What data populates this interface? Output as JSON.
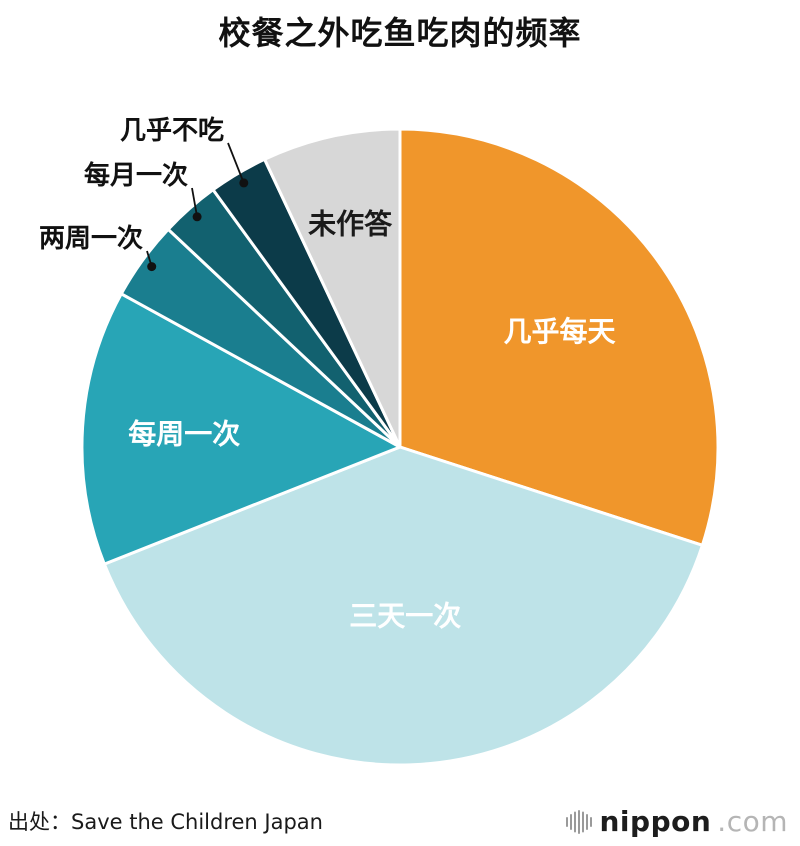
{
  "title": "校餐之外吃鱼吃肉的频率",
  "footer": {
    "source": "出处：Save the Children Japan",
    "logo_text": "nippon",
    "logo_suffix": ".com"
  },
  "chart_data": {
    "type": "pie",
    "title": "校餐之外吃鱼吃肉的频率",
    "direction": "clockwise",
    "start_angle_deg": 0,
    "legend": "none",
    "slices": [
      {
        "label": "几乎每天",
        "value": 30,
        "color": "#F0962B",
        "label_color": "#FFFFFF",
        "placement": "inside"
      },
      {
        "label": "三天一次",
        "value": 39,
        "color": "#BEE3E8",
        "label_color": "#FFFFFF",
        "placement": "inside"
      },
      {
        "label": "每周一次",
        "value": 14,
        "color": "#28A5B6",
        "label_color": "#FFFFFF",
        "placement": "inside"
      },
      {
        "label": "两周一次",
        "value": 4,
        "color": "#1A7E8F",
        "label_color": "#111111",
        "placement": "outside"
      },
      {
        "label": "每月一次",
        "value": 3,
        "color": "#12616F",
        "label_color": "#111111",
        "placement": "outside"
      },
      {
        "label": "几乎不吃",
        "value": 3,
        "color": "#0C3B49",
        "label_color": "#111111",
        "placement": "outside"
      },
      {
        "label": "未作答",
        "value": 7,
        "color": "#D7D7D7",
        "label_color": "#1A1A1A",
        "placement": "inside"
      }
    ]
  }
}
